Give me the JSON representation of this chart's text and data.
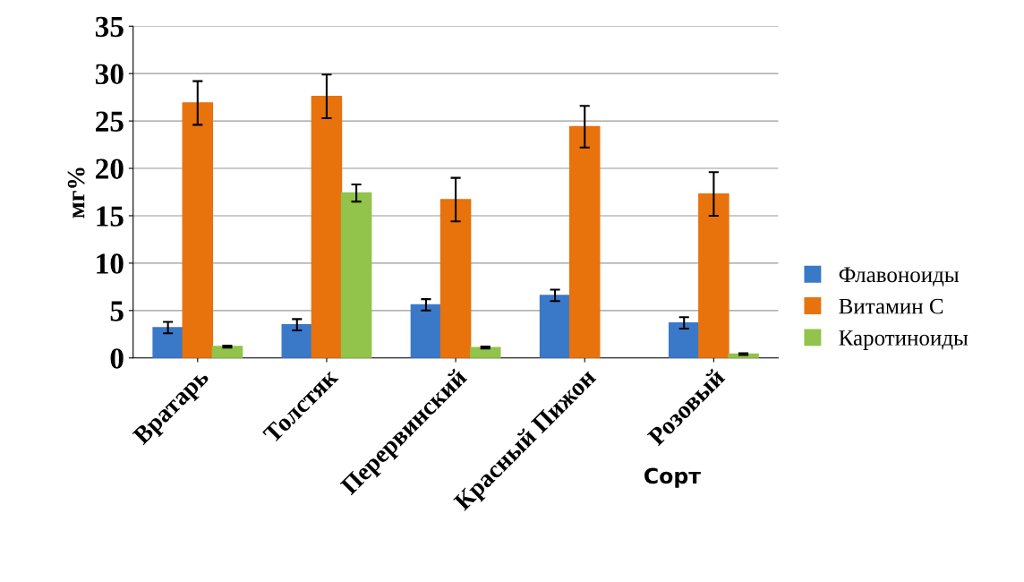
{
  "chart_data": {
    "type": "bar",
    "xlabel": "Сорт",
    "ylabel": "мг%",
    "categories": [
      "Вратарь",
      "Толстяк",
      "Перервинский",
      "Красный Пижон",
      "Розовый"
    ],
    "series": [
      {
        "name": "Флавоноиды",
        "color": "#3a78c8",
        "values": [
          3.2,
          3.5,
          5.6,
          6.6,
          3.7
        ],
        "errors": [
          0.6,
          0.6,
          0.6,
          0.6,
          0.6
        ]
      },
      {
        "name": "Витамин С",
        "color": "#e8720c",
        "values": [
          26.9,
          27.6,
          16.7,
          24.4,
          17.3
        ],
        "errors": [
          2.3,
          2.3,
          2.3,
          2.2,
          2.3
        ]
      },
      {
        "name": "Каротиноиды",
        "color": "#92c34a",
        "values": [
          1.2,
          17.4,
          1.1,
          null,
          0.4
        ],
        "errors": [
          0.1,
          0.9,
          0.1,
          null,
          0.1
        ]
      }
    ],
    "ylim": [
      0,
      35
    ],
    "yticks": [
      0,
      5,
      10,
      15,
      20,
      25,
      30,
      35
    ],
    "grid": "y",
    "legend": "right"
  }
}
